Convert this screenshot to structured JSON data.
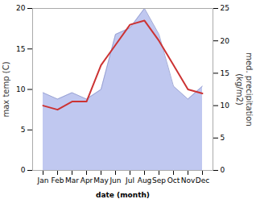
{
  "chart_data": {
    "type": "line",
    "categories": [
      "Jan",
      "Feb",
      "Mar",
      "Apr",
      "May",
      "Jun",
      "Jul",
      "Aug",
      "Sep",
      "Oct",
      "Nov",
      "Dec"
    ],
    "series": [
      {
        "type": "area",
        "axis": "y2",
        "color": "#c0c8f0",
        "values": [
          12.0,
          11.0,
          12.0,
          11.0,
          12.5,
          21.0,
          22.0,
          25.0,
          21.0,
          13.0,
          11.0,
          13.0
        ]
      },
      {
        "type": "line",
        "color": "#cc3333",
        "values": [
          8.0,
          7.5,
          8.5,
          8.5,
          13.0,
          15.5,
          18.0,
          18.5,
          16.0,
          13.0,
          10.0,
          9.5
        ]
      }
    ],
    "xlabel": "date (month)",
    "ylabel": "max temp (C)",
    "y2label": "med. precipitation\n(kg/m2)",
    "ylim": [
      0,
      20
    ],
    "yticks": [
      0,
      5,
      10,
      15,
      20
    ],
    "y2lim": [
      0,
      25
    ],
    "y2ticks": [
      0,
      5,
      10,
      15,
      20,
      25
    ]
  }
}
